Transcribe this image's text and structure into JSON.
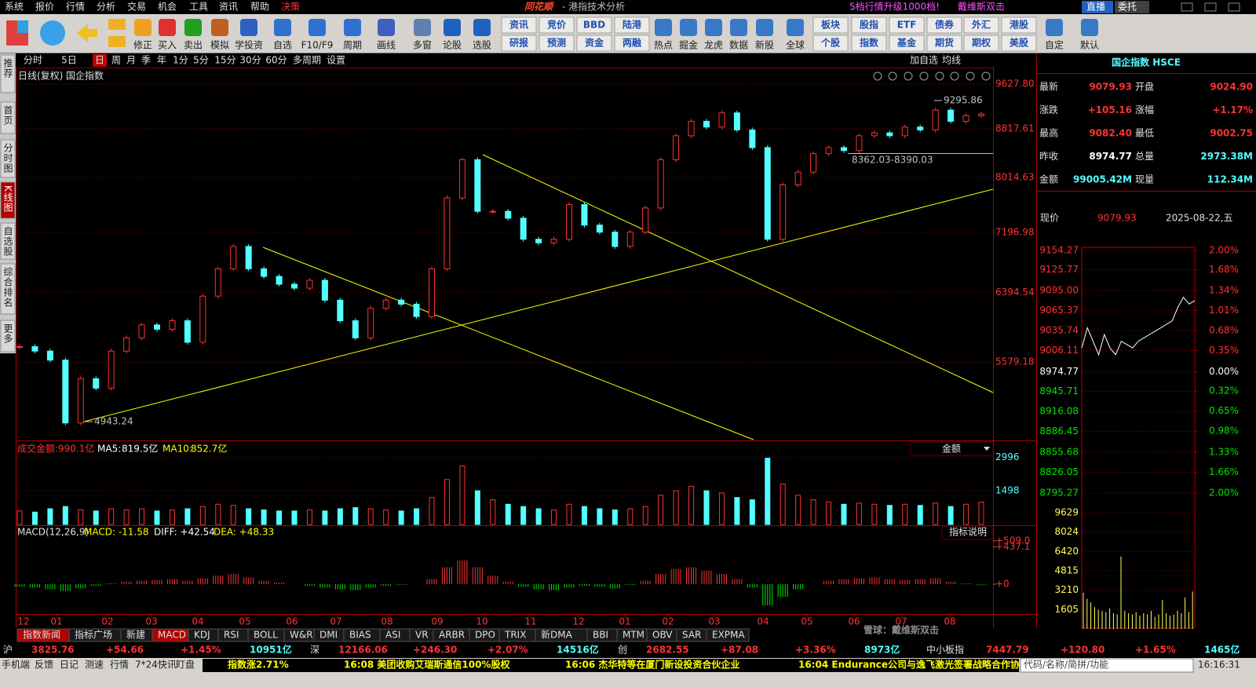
{
  "menu": [
    "系统",
    "报价",
    "行情",
    "分析",
    "交易",
    "机会",
    "工具",
    "资讯",
    "帮助",
    "决策"
  ],
  "brand": "同花顺",
  "app_title": "- 港指技术分析",
  "top_right": {
    "promo": "5档行情升级1000档!",
    "link": "戴维斯双击",
    "live": "直播",
    "order": "委托"
  },
  "toolbar": [
    "修正",
    "买入",
    "卖出",
    "模拟",
    "学投资",
    "自选",
    "F10/F9",
    "周期",
    "画线",
    "多窗",
    "论股",
    "选股",
    [
      "资讯",
      "研报"
    ],
    [
      "竞价",
      "预测"
    ],
    [
      "BBD",
      "资金"
    ],
    [
      "陆港",
      "两融"
    ],
    "热点",
    "掘金",
    "龙虎",
    "数据",
    "新股",
    "全球",
    [
      "板块",
      "个股"
    ],
    [
      "股指",
      "指数"
    ],
    [
      "ETF",
      "基金"
    ],
    [
      "债券",
      "期货"
    ],
    [
      "外汇",
      "期权"
    ],
    [
      "港股",
      "美股"
    ],
    "自定",
    "默认"
  ],
  "side_tabs": [
    "推荐",
    "首页",
    "分时图",
    "K线图",
    "自选股",
    "综合排名",
    "更多"
  ],
  "periods": [
    "分时",
    "5日",
    "日",
    "周",
    "月",
    "季",
    "年",
    "1分",
    "5分",
    "15分",
    "30分",
    "60分",
    "多周期",
    "设置"
  ],
  "period_right": [
    "加自选",
    "均线"
  ],
  "chart_data": [
    {
      "type": "candlestick",
      "label": "日线(复权)",
      "name": "国企指数",
      "log": true,
      "ylim": [
        4790,
        9660
      ],
      "yticks": [
        {
          "value": 9627.8,
          "label": "9627.80"
        },
        8817.61,
        8014.63,
        7196.98,
        6394.54,
        5579.18
      ],
      "annotations": [
        "9295.86",
        "4943.24",
        "8362.03-8390.03"
      ],
      "months": [
        "12",
        "01",
        "02",
        "03",
        "04",
        "05",
        "06",
        "07",
        "08",
        "09",
        "10",
        "11",
        "12",
        "01",
        "02",
        "03",
        "04",
        "05",
        "06",
        "07",
        "08"
      ],
      "values": [
        5750,
        5700,
        5600,
        4950,
        5400,
        5300,
        5700,
        5850,
        6000,
        5950,
        6050,
        5800,
        6350,
        6700,
        7000,
        6700,
        6600,
        6500,
        6450,
        6550,
        6300,
        6050,
        5850,
        6200,
        6300,
        6250,
        6100,
        6700,
        7700,
        8300,
        7500,
        7500,
        7400,
        7100,
        7050,
        7100,
        7600,
        7300,
        7200,
        7000,
        7200,
        7550,
        8300,
        8700,
        8950,
        8850,
        9100,
        8800,
        8500,
        7100,
        7900,
        8100,
        8400,
        8500,
        8450,
        8700,
        8750,
        8700,
        8850,
        8800,
        9150,
        8950,
        9050,
        9080
      ],
      "up_color": "#ff3232",
      "down_color": "#54ffff"
    },
    {
      "type": "bar",
      "label": "成交金额:",
      "value": "990.1亿",
      "ma5_label": "MA5:",
      "ma5": "819.5亿",
      "ma10_label": "MA10:",
      "ma10": "852.7亿",
      "selector": "金额",
      "ylim": [
        0,
        3600
      ],
      "yticks": [
        2996,
        1498
      ],
      "values": [
        600,
        550,
        700,
        800,
        650,
        600,
        700,
        650,
        700,
        600,
        650,
        700,
        800,
        900,
        850,
        700,
        650,
        600,
        600,
        650,
        600,
        700,
        750,
        700,
        650,
        600,
        700,
        1200,
        2000,
        2600,
        1500,
        1100,
        900,
        800,
        700,
        650,
        900,
        800,
        700,
        650,
        700,
        800,
        1300,
        1500,
        1700,
        1500,
        1400,
        1200,
        1100,
        2950,
        1800,
        1300,
        1100,
        1000,
        900,
        950,
        900,
        850,
        900,
        850,
        950,
        800,
        900,
        990
      ]
    },
    {
      "type": "bar",
      "label": "MACD(12,26,9)",
      "macd": "MACD: -11.58",
      "diff": "DIFF: +42.54",
      "dea": "DEA: +48.33",
      "help": "指标说明",
      "ylim": [
        -350,
        665
      ],
      "yticks": [
        {
          "value": 509,
          "label": "+509.0"
        },
        {
          "value": 437.1,
          "label": "+437.1"
        },
        {
          "value": 0,
          "label": "+0"
        }
      ],
      "values": [
        -30,
        -40,
        -60,
        -80,
        -50,
        -20,
        10,
        30,
        40,
        50,
        60,
        40,
        70,
        100,
        120,
        80,
        40,
        20,
        0,
        -20,
        -40,
        -60,
        -70,
        -40,
        -20,
        -10,
        0,
        60,
        200,
        280,
        200,
        100,
        30,
        -30,
        -60,
        -70,
        -40,
        -20,
        -30,
        -50,
        -10,
        40,
        120,
        180,
        200,
        160,
        120,
        60,
        -40,
        -250,
        -150,
        -60,
        0,
        40,
        60,
        70,
        80,
        60,
        50,
        60,
        70,
        30,
        10,
        -11.58
      ],
      "pos_color": "#ff3232",
      "neg_color": "#00e600"
    },
    {
      "type": "line",
      "ylim": [
        8795.27,
        9154.27
      ],
      "yticks": [
        9154.27,
        9125.77,
        {
          "value": 9095,
          "label": "9095.00"
        },
        9065.37,
        9035.74,
        9006.11,
        8974.77,
        8945.71,
        8916.08,
        8886.45,
        8855.68,
        8826.05,
        8795.27
      ],
      "y2lim": [
        -2,
        2
      ],
      "y2ticks": [
        {
          "value": 2,
          "label": "2.00%"
        },
        {
          "value": 1.68,
          "label": "1.68%"
        },
        {
          "value": 1.34,
          "label": "1.34%"
        },
        {
          "value": 1.01,
          "label": "1.01%"
        },
        {
          "value": 0.68,
          "label": "0.68%"
        },
        {
          "value": 0.35,
          "label": "0.35%"
        },
        {
          "value": 0,
          "label": "0.00%"
        },
        {
          "value": -0.32,
          "label": "0.32%"
        },
        {
          "value": -0.65,
          "label": "0.65%"
        },
        {
          "value": -0.98,
          "label": "0.98%"
        },
        {
          "value": -1.33,
          "label": "1.33%"
        },
        {
          "value": -1.66,
          "label": "1.66%"
        },
        {
          "value": -2,
          "label": "2.00%"
        }
      ],
      "values": [
        9010,
        9040,
        9020,
        9000,
        9030,
        9010,
        9000,
        9020,
        9015,
        9010,
        9020,
        9025,
        9030,
        9035,
        9040,
        9045,
        9050,
        9070,
        9085,
        9075,
        9080
      ],
      "color": "#ffffff"
    },
    {
      "type": "bar",
      "ylim": [
        0,
        9629
      ],
      "yticks": [
        9629,
        8024,
        6420,
        4815,
        3210,
        1605
      ],
      "values": [
        3000,
        2500,
        2200,
        1800,
        1600,
        1500,
        1400,
        1700,
        1300,
        1200,
        6000,
        1500,
        1300,
        1200,
        1400,
        1100,
        1300,
        1200,
        1500,
        1000,
        1200,
        2400,
        1300,
        1100,
        1200,
        1500,
        1300,
        2600,
        1400,
        3100
      ],
      "color": "#ffff54"
    }
  ],
  "quote": {
    "title": "国企指数 HSCE",
    "rows": [
      [
        "最新",
        "9079.93",
        "开盘",
        "9024.90"
      ],
      [
        "涨跌",
        "+105.16",
        "涨幅",
        "+1.17%"
      ],
      [
        "最高",
        "9082.40",
        "最低",
        "9002.75"
      ],
      [
        "昨收",
        "8974.77",
        "总量",
        "2973.38M"
      ],
      [
        "金额",
        "99005.42M",
        "现量",
        "112.34M"
      ]
    ],
    "price_label": "现价",
    "price": "9079.93",
    "date": "2025-08-22,五"
  },
  "indicator_tabs": [
    "指数新闻",
    "指标广场",
    "新建",
    "MACD",
    "KDJ",
    "RSI",
    "BOLL",
    "W&R",
    "DMI",
    "BIAS",
    "ASI",
    "VR",
    "ARBR",
    "DPO",
    "TRIX",
    "新DMA",
    "BBI",
    "MTM",
    "OBV",
    "SAR",
    "EXPMA"
  ],
  "ticker": [
    [
      "沪",
      "3825.76",
      "+54.66",
      "+1.45%",
      "10951亿"
    ],
    [
      "深",
      "12166.06",
      "+246.30",
      "+2.07%",
      "14516亿"
    ],
    [
      "创",
      "2682.55",
      "+87.08",
      "+3.36%",
      "8973亿"
    ],
    [
      "中小板指",
      "7447.79",
      "+120.80",
      "+1.65%",
      "1465亿"
    ]
  ],
  "status": {
    "links": [
      "手机端",
      "反馈",
      "日记",
      "测速",
      "行情",
      "7*24快讯",
      "盯盘"
    ],
    "news": [
      "指数涨2.71%",
      "16:08 美团收购艾瑞斯通信100%股权",
      "16:06 杰华特等在厦门新设投资合伙企业",
      "16:04 Endurance公司与逸飞激光签署战略合作协"
    ],
    "search": "代码/名称/简拼/功能",
    "time": "16:16:31"
  },
  "watermark": "雪球：戴维斯双击"
}
